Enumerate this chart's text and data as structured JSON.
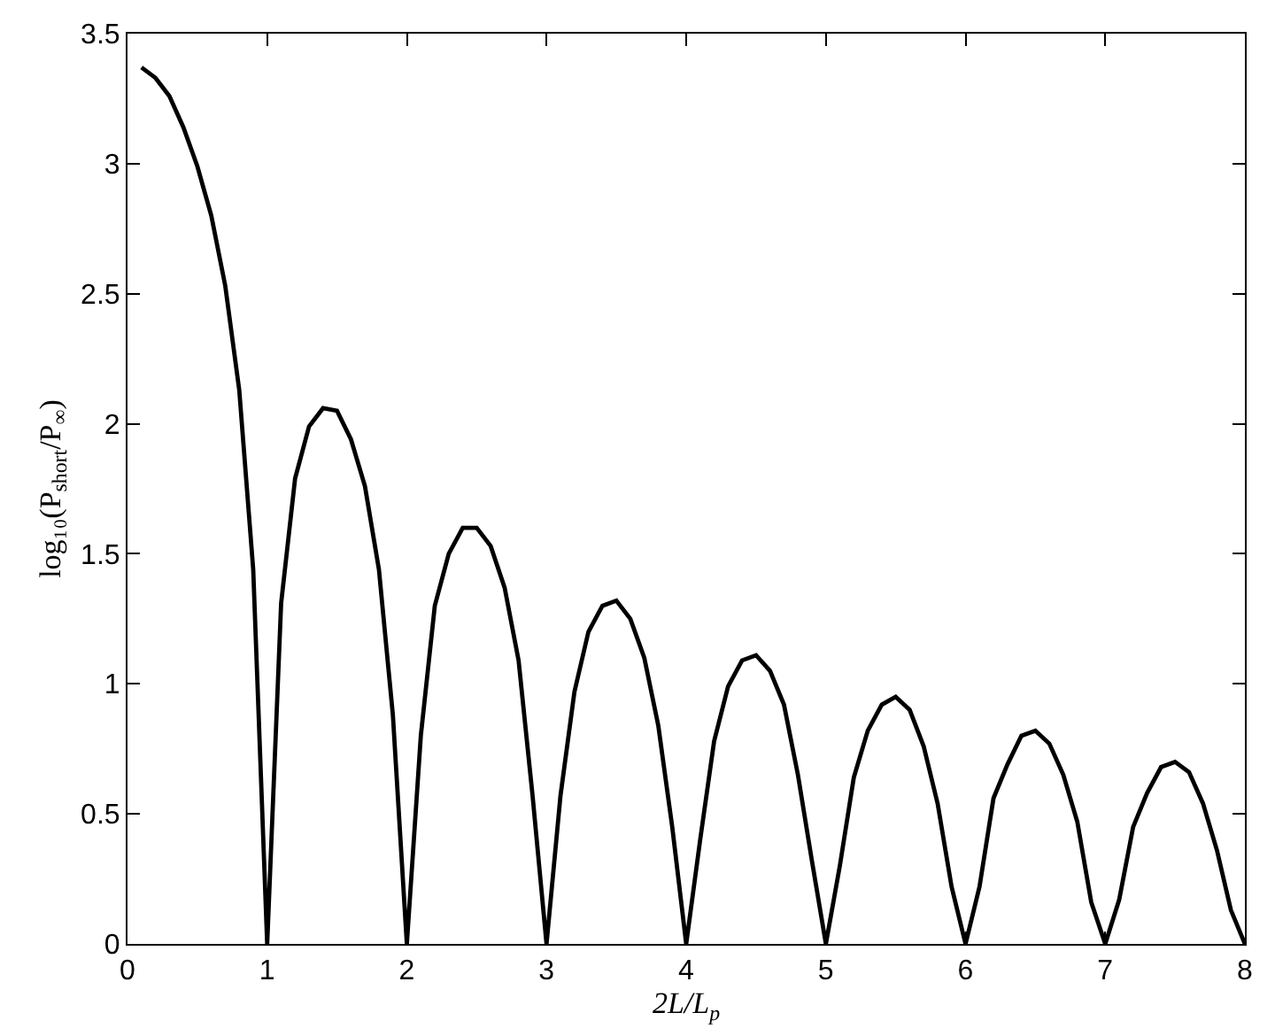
{
  "chart_data": {
    "type": "line",
    "xlabel": "2L/L$_{p}$",
    "ylabel": "log₁₀(P$_{short}$/P$_{∞}$)",
    "x": [
      0.1,
      0.2,
      0.3,
      0.4,
      0.5,
      0.6,
      0.7,
      0.8,
      0.9,
      1.0,
      1.1,
      1.2,
      1.3,
      1.4,
      1.5,
      1.6,
      1.7,
      1.8,
      1.9,
      2.0,
      2.1,
      2.2,
      2.3,
      2.4,
      2.5,
      2.6,
      2.7,
      2.8,
      2.9,
      3.0,
      3.1,
      3.2,
      3.3,
      3.4,
      3.5,
      3.6,
      3.7,
      3.8,
      3.9,
      4.0,
      4.1,
      4.2,
      4.3,
      4.4,
      4.5,
      4.6,
      4.7,
      4.8,
      4.9,
      5.0,
      5.1,
      5.2,
      5.3,
      5.4,
      5.5,
      5.6,
      5.7,
      5.8,
      5.9,
      6.0,
      6.1,
      6.2,
      6.3,
      6.4,
      6.5,
      6.6,
      6.7,
      6.8,
      6.9,
      7.0,
      7.1,
      7.2,
      7.3,
      7.4,
      7.5,
      7.6,
      7.7,
      7.8,
      7.9,
      8.0
    ],
    "series": [
      {
        "color": "#000000",
        "values": [
          3.37,
          3.33,
          3.26,
          3.14,
          2.99,
          2.8,
          2.53,
          2.13,
          1.44,
          0,
          1.31,
          1.79,
          1.99,
          2.06,
          2.05,
          1.94,
          1.76,
          1.44,
          0.88,
          0,
          0.8,
          1.3,
          1.5,
          1.6,
          1.6,
          1.53,
          1.37,
          1.09,
          0.57,
          0,
          0.57,
          0.97,
          1.2,
          1.3,
          1.32,
          1.25,
          1.1,
          0.84,
          0.45,
          0,
          0.4,
          0.78,
          0.99,
          1.09,
          1.11,
          1.05,
          0.92,
          0.65,
          0.32,
          0,
          0.3,
          0.64,
          0.82,
          0.92,
          0.95,
          0.9,
          0.76,
          0.54,
          0.22,
          0,
          0.22,
          0.56,
          0.69,
          0.8,
          0.82,
          0.77,
          0.65,
          0.47,
          0.16,
          0,
          0.17,
          0.45,
          0.58,
          0.68,
          0.7,
          0.66,
          0.54,
          0.36,
          0.13,
          0
        ]
      }
    ],
    "xlim": [
      0,
      8
    ],
    "xticks": [
      0,
      1,
      2,
      3,
      4,
      5,
      6,
      7,
      8
    ],
    "ylim": [
      0,
      3.5
    ],
    "yticks": [
      0,
      0.5,
      1,
      1.5,
      2,
      2.5,
      3,
      3.5
    ],
    "marker": "none",
    "line_style": "solid"
  }
}
